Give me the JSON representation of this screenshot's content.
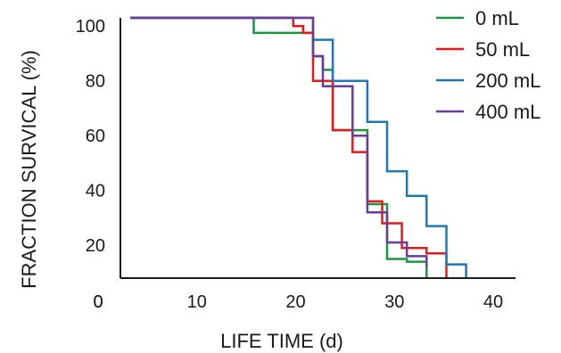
{
  "chart_data": {
    "type": "line",
    "step": true,
    "xlabel": "LIFE TIME (d)",
    "ylabel": "FRACTION SURVICAL (%)",
    "x_ticks": [
      0,
      10,
      20,
      30,
      40
    ],
    "y_ticks": [
      20,
      40,
      60,
      80,
      100
    ],
    "x_axis_range": [
      0,
      40
    ],
    "y_axis_range": [
      8,
      103
    ],
    "legend_position": "top-right",
    "grid": false,
    "series": [
      {
        "name": "0 mL",
        "color": "#1a9641",
        "x": [
          1,
          13.5,
          13.5,
          19.5,
          19.5,
          20.5,
          20.5,
          21.5,
          21.5,
          25,
          25,
          27,
          27,
          29,
          29,
          31,
          31
        ],
        "y": [
          103,
          103,
          97.5,
          97.5,
          89,
          89,
          84,
          84,
          62,
          62,
          35,
          35,
          15,
          15,
          14,
          14,
          8
        ]
      },
      {
        "name": "50 mL",
        "color": "#e41a1c",
        "x": [
          1,
          17.5,
          17.5,
          18.5,
          18.5,
          19.5,
          19.5,
          21.5,
          21.5,
          23.5,
          23.5,
          25,
          25,
          26.5,
          26.5,
          28.5,
          28.5,
          31,
          31,
          33,
          33
        ],
        "y": [
          103,
          103,
          100,
          100,
          97.5,
          97.5,
          80,
          80,
          62,
          62,
          54,
          54,
          36,
          36,
          28,
          28,
          19,
          19,
          17,
          17,
          8
        ]
      },
      {
        "name": "200 mL",
        "color": "#1f78b4",
        "x": [
          1,
          19.5,
          19.5,
          21.5,
          21.5,
          25,
          25,
          27,
          27,
          29,
          29,
          31,
          31,
          33,
          33,
          35,
          35
        ],
        "y": [
          103,
          103,
          95,
          95,
          80,
          80,
          65,
          65,
          47,
          47,
          38,
          38,
          27,
          27,
          13,
          13,
          8
        ]
      },
      {
        "name": "400 mL",
        "color": "#6a3d9a",
        "x": [
          1,
          19.5,
          19.5,
          20.5,
          20.5,
          21.5,
          21.5,
          23.5,
          23.5,
          25,
          25,
          27,
          27,
          29,
          29,
          31,
          31
        ],
        "y": [
          103,
          103,
          89,
          89,
          78,
          78,
          78,
          78,
          60,
          60,
          32,
          32,
          21,
          21,
          16,
          16,
          12
        ]
      }
    ]
  }
}
